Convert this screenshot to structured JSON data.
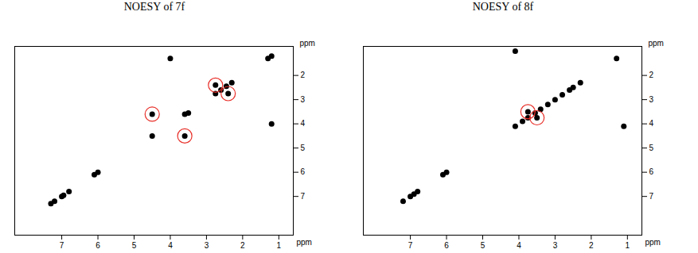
{
  "chart_data": [
    {
      "type": "scatter",
      "title": "NOESY of 7f",
      "xlabel": "ppm",
      "ylabel": "ppm",
      "xlim": [
        8.3,
        0.6
      ],
      "ylim": [
        8.6,
        0.8
      ],
      "xticks": [
        7,
        6,
        5,
        4,
        3,
        2,
        1
      ],
      "yticks": [
        2,
        3,
        4,
        5,
        6,
        7
      ],
      "series": [
        {
          "color": "#000000",
          "marker": "dot",
          "x": [
            1.3,
            1.2,
            2.3,
            2.45,
            2.6,
            2.75,
            2.4,
            2.75,
            3.6,
            3.5,
            4.5,
            4.5,
            3.6,
            6.1,
            6.0,
            6.8,
            6.95,
            7.0,
            7.2,
            7.3,
            1.2,
            4.0
          ],
          "y": [
            1.3,
            1.2,
            2.3,
            2.45,
            2.6,
            2.75,
            2.75,
            2.4,
            3.6,
            3.55,
            4.5,
            3.6,
            4.5,
            6.1,
            6.0,
            6.8,
            6.95,
            7.0,
            7.2,
            7.3,
            4.0,
            1.3
          ]
        },
        {
          "color": "#e8302a",
          "marker": "open_circle",
          "x": [
            2.75,
            2.4,
            4.5,
            3.6
          ],
          "y": [
            2.4,
            2.75,
            3.6,
            4.5
          ]
        }
      ]
    },
    {
      "type": "scatter",
      "title": "NOESY of 8f",
      "xlabel": "ppm",
      "ylabel": "ppm",
      "xlim": [
        8.3,
        0.6
      ],
      "ylim": [
        8.6,
        0.8
      ],
      "xticks": [
        7,
        6,
        5,
        4,
        3,
        2,
        1
      ],
      "yticks": [
        2,
        3,
        4,
        5,
        6,
        7
      ],
      "series": [
        {
          "color": "#000000",
          "marker": "dot",
          "x": [
            1.3,
            2.3,
            2.5,
            2.6,
            2.8,
            3.0,
            3.2,
            3.4,
            3.55,
            3.75,
            3.9,
            4.1,
            6.1,
            6.0,
            6.8,
            6.9,
            7.0,
            7.2,
            3.75,
            3.5,
            1.1,
            4.1
          ],
          "y": [
            1.3,
            2.3,
            2.5,
            2.6,
            2.8,
            3.0,
            3.2,
            3.4,
            3.55,
            3.75,
            3.9,
            4.1,
            6.1,
            6.0,
            6.8,
            6.9,
            7.0,
            7.2,
            3.5,
            3.75,
            4.1,
            1.0
          ]
        },
        {
          "color": "#e8302a",
          "marker": "open_circle",
          "x": [
            3.75,
            3.5
          ],
          "y": [
            3.5,
            3.75
          ]
        }
      ]
    }
  ]
}
